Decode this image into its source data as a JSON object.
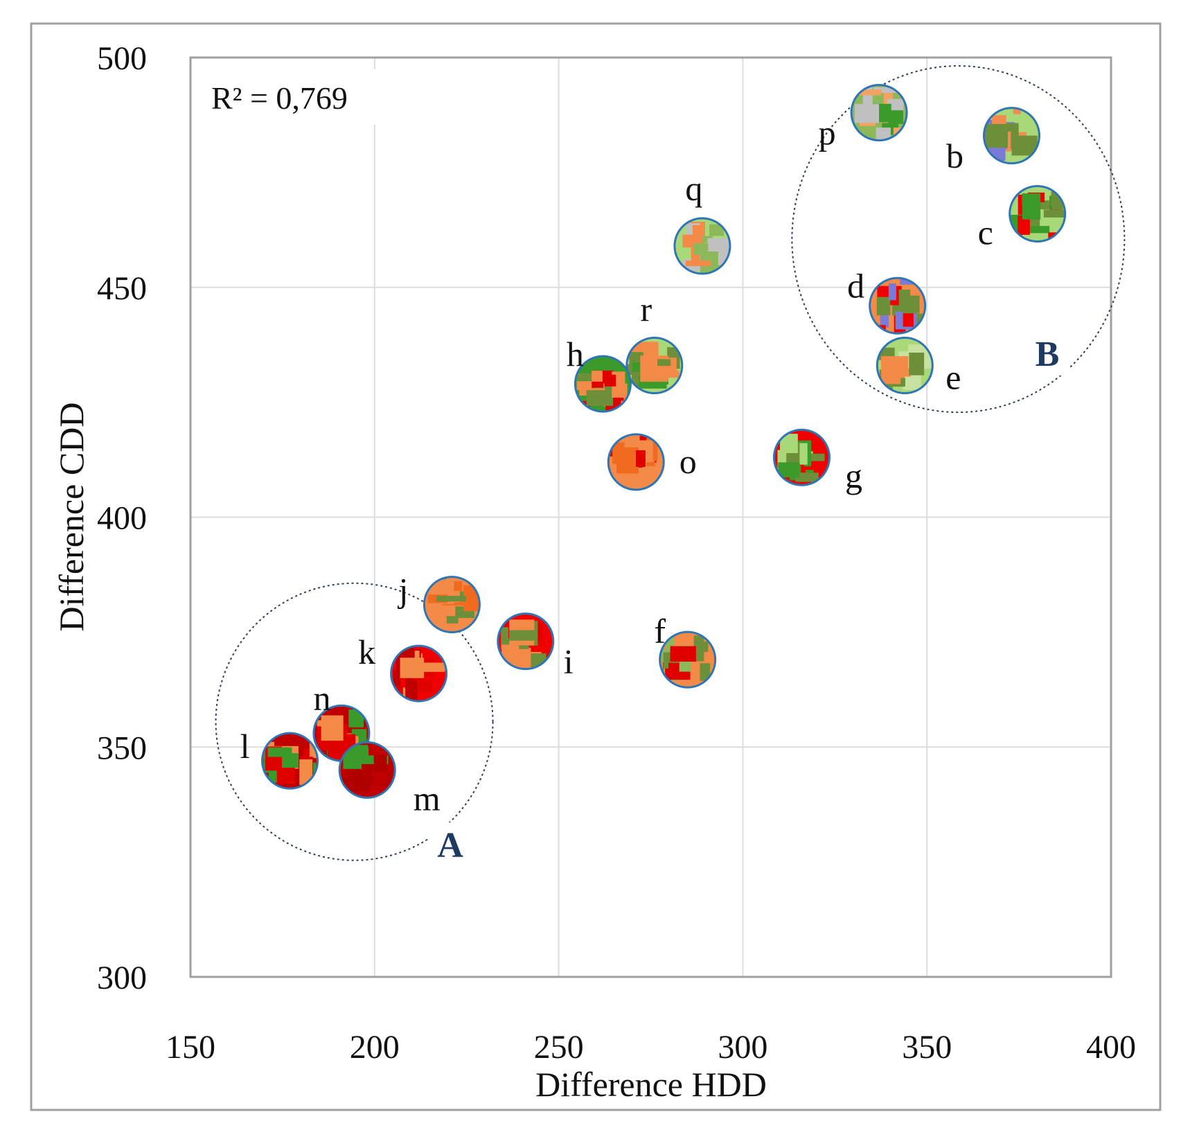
{
  "chart_data": {
    "type": "scatter",
    "title": "",
    "xlabel": "Difference HDD",
    "ylabel": "Difference CDD",
    "xlim": [
      150,
      400
    ],
    "ylim": [
      300,
      500
    ],
    "xticks": [
      "150",
      "200",
      "250",
      "300",
      "350",
      "400"
    ],
    "yticks": [
      "300",
      "350",
      "400",
      "450",
      "500"
    ],
    "grid": true,
    "annotation": "R² = 0,769",
    "points": [
      {
        "label": "p",
        "x": 337,
        "y": 488,
        "colors": [
          "#8db85a",
          "#f4a261",
          "#c0c0c0",
          "#3a9a2a"
        ]
      },
      {
        "label": "b",
        "x": 373,
        "y": 483,
        "colors": [
          "#a8d878",
          "#f28b50",
          "#6e8f3a",
          "#7a7ad8"
        ]
      },
      {
        "label": "c",
        "x": 380,
        "y": 466,
        "colors": [
          "#a8d878",
          "#f00000",
          "#6e8f3a",
          "#3a9a2a"
        ]
      },
      {
        "label": "q",
        "x": 289,
        "y": 459,
        "colors": [
          "#a8d878",
          "#f48a48",
          "#c0c0c0",
          "#8db85a"
        ]
      },
      {
        "label": "d",
        "x": 342,
        "y": 446,
        "colors": [
          "#f48a48",
          "#f00000",
          "#6e8f3a",
          "#7a7ad8"
        ]
      },
      {
        "label": "e",
        "x": 344,
        "y": 433,
        "colors": [
          "#a8d878",
          "#f48a48",
          "#6e8f3a",
          "#c8e0a0"
        ]
      },
      {
        "label": "r",
        "x": 276,
        "y": 433,
        "colors": [
          "#a8d878",
          "#f48a48",
          "#6e8f3a",
          "#3a9a2a"
        ]
      },
      {
        "label": "h",
        "x": 262,
        "y": 429,
        "colors": [
          "#3a9a2a",
          "#f48a48",
          "#e00000",
          "#6e8f3a"
        ]
      },
      {
        "label": "o",
        "x": 271,
        "y": 412,
        "colors": [
          "#f48a48",
          "#f06a20",
          "#e00000",
          "#f48a48"
        ]
      },
      {
        "label": "g",
        "x": 316,
        "y": 413,
        "colors": [
          "#f00000",
          "#3a9a2a",
          "#a8d878",
          "#6e8f3a"
        ]
      },
      {
        "label": "j",
        "x": 221,
        "y": 381,
        "colors": [
          "#f48a48",
          "#f06a20",
          "#6e8f3a",
          "#f48a48"
        ]
      },
      {
        "label": "i",
        "x": 241,
        "y": 373,
        "colors": [
          "#f00000",
          "#f48a48",
          "#6e8f3a",
          "#e00000"
        ]
      },
      {
        "label": "f",
        "x": 285,
        "y": 369,
        "colors": [
          "#f48a48",
          "#6e8f3a",
          "#e00000",
          "#8db85a"
        ]
      },
      {
        "label": "k",
        "x": 212,
        "y": 366,
        "colors": [
          "#f00000",
          "#c00000",
          "#f48a48",
          "#e00000"
        ]
      },
      {
        "label": "n",
        "x": 191,
        "y": 353,
        "colors": [
          "#c00000",
          "#e00000",
          "#f48a48",
          "#3a9a2a"
        ]
      },
      {
        "label": "l",
        "x": 177,
        "y": 347,
        "colors": [
          "#c00000",
          "#f48a48",
          "#3a9a2a",
          "#e00000"
        ]
      },
      {
        "label": "m",
        "x": 198,
        "y": 345,
        "colors": [
          "#c00000",
          "#b00000",
          "#3a9a2a",
          "#c00000"
        ]
      }
    ],
    "groups": [
      {
        "label": "A",
        "members": [
          "k",
          "l",
          "m",
          "n"
        ]
      },
      {
        "label": "B",
        "members": [
          "b",
          "c",
          "d",
          "e",
          "p"
        ]
      }
    ]
  },
  "colors": {
    "grid": "#dcdcdc",
    "frame": "#a0a0a0",
    "marker_stroke": "#2e75b6",
    "group_outline": "#2f3e55",
    "group_label": "#1f3a60"
  }
}
